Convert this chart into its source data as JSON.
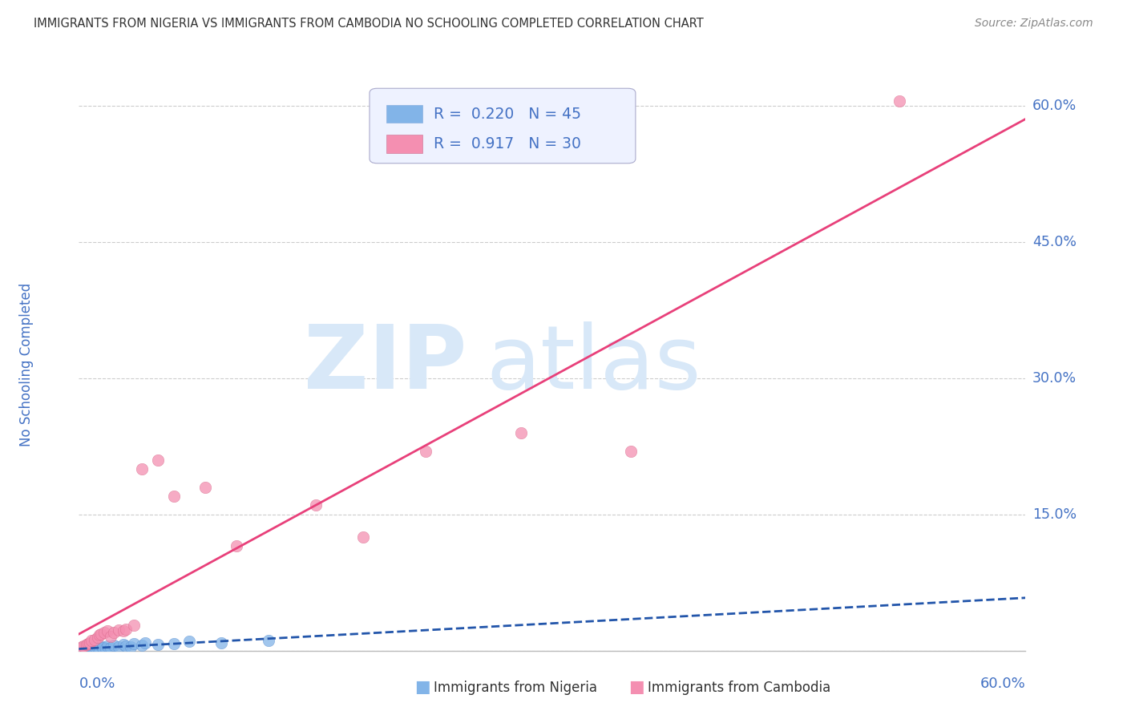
{
  "title": "IMMIGRANTS FROM NIGERIA VS IMMIGRANTS FROM CAMBODIA NO SCHOOLING COMPLETED CORRELATION CHART",
  "source": "Source: ZipAtlas.com",
  "ylabel": "No Schooling Completed",
  "xmin": 0.0,
  "xmax": 0.6,
  "ymin": 0.0,
  "ymax": 0.63,
  "yticks": [
    0.0,
    0.15,
    0.3,
    0.45,
    0.6
  ],
  "ytick_labels": [
    "",
    "15.0%",
    "30.0%",
    "45.0%",
    "60.0%"
  ],
  "nigeria_R": 0.22,
  "nigeria_N": 45,
  "cambodia_R": 0.917,
  "cambodia_N": 30,
  "nigeria_color": "#82b4e8",
  "cambodia_color": "#f48fb1",
  "nigeria_line_color": "#2255aa",
  "cambodia_line_color": "#e8407a",
  "title_color": "#333333",
  "source_color": "#888888",
  "axis_color": "#4472c4",
  "watermark_color": "#d8e8f8",
  "legend_bg": "#eef2ff",
  "nigeria_scatter_x": [
    0.001,
    0.001,
    0.002,
    0.002,
    0.002,
    0.003,
    0.003,
    0.003,
    0.004,
    0.004,
    0.004,
    0.005,
    0.005,
    0.005,
    0.006,
    0.006,
    0.007,
    0.007,
    0.008,
    0.008,
    0.009,
    0.009,
    0.01,
    0.01,
    0.011,
    0.012,
    0.013,
    0.015,
    0.015,
    0.017,
    0.018,
    0.02,
    0.022,
    0.025,
    0.028,
    0.03,
    0.033,
    0.035,
    0.04,
    0.042,
    0.05,
    0.06,
    0.07,
    0.09,
    0.12
  ],
  "nigeria_scatter_y": [
    0.001,
    0.002,
    0.001,
    0.003,
    0.002,
    0.001,
    0.002,
    0.003,
    0.001,
    0.002,
    0.004,
    0.001,
    0.002,
    0.003,
    0.001,
    0.004,
    0.002,
    0.003,
    0.001,
    0.005,
    0.002,
    0.003,
    0.001,
    0.004,
    0.002,
    0.003,
    0.002,
    0.004,
    0.003,
    0.002,
    0.005,
    0.003,
    0.006,
    0.004,
    0.007,
    0.005,
    0.004,
    0.008,
    0.006,
    0.009,
    0.007,
    0.008,
    0.01,
    0.009,
    0.011
  ],
  "cambodia_scatter_x": [
    0.001,
    0.002,
    0.003,
    0.005,
    0.006,
    0.007,
    0.008,
    0.01,
    0.012,
    0.013,
    0.014,
    0.016,
    0.018,
    0.02,
    0.022,
    0.025,
    0.028,
    0.03,
    0.035,
    0.04,
    0.05,
    0.06,
    0.08,
    0.1,
    0.15,
    0.18,
    0.22,
    0.28,
    0.35,
    0.52
  ],
  "cambodia_scatter_y": [
    0.002,
    0.004,
    0.005,
    0.007,
    0.008,
    0.009,
    0.011,
    0.012,
    0.015,
    0.017,
    0.018,
    0.02,
    0.022,
    0.016,
    0.02,
    0.023,
    0.022,
    0.024,
    0.028,
    0.2,
    0.21,
    0.17,
    0.18,
    0.115,
    0.16,
    0.125,
    0.22,
    0.24,
    0.22,
    0.605
  ]
}
